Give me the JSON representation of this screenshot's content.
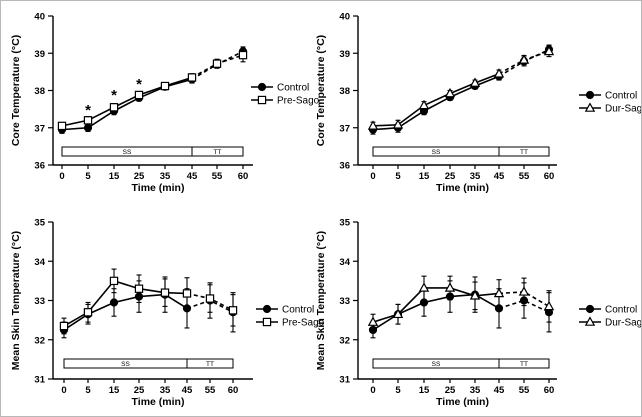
{
  "chart_data": [
    {
      "type": "line",
      "id": "core-pre",
      "ylabel": "Core Temperature (°C)",
      "xlabel": "Time (min)",
      "ylim": [
        36,
        40
      ],
      "yticks": [
        36,
        37,
        38,
        39,
        40
      ],
      "x": [
        0,
        5,
        15,
        25,
        35,
        45,
        55,
        60
      ],
      "xlabels": [
        "0",
        "5",
        "15",
        "25",
        "35",
        "45",
        "55",
        "60"
      ],
      "phases": [
        "SS",
        "TT"
      ],
      "solid_end_index": 5,
      "significance": [
        {
          "label": "*",
          "index": 1,
          "y": 37.5
        },
        {
          "label": "*",
          "index": 2,
          "y": 37.9
        },
        {
          "label": "*",
          "index": 3,
          "y": 38.2
        }
      ],
      "series": [
        {
          "name": "Control",
          "marker": "circle",
          "values": [
            36.95,
            37.0,
            37.45,
            37.8,
            38.1,
            38.3,
            38.7,
            39.05
          ],
          "errors": [
            0.1,
            0.1,
            0.1,
            0.08,
            0.08,
            0.1,
            0.1,
            0.12
          ]
        },
        {
          "name": "Pre-Sago",
          "marker": "square",
          "values": [
            37.05,
            37.2,
            37.55,
            37.88,
            38.12,
            38.35,
            38.72,
            38.95
          ],
          "errors": [
            0.08,
            0.1,
            0.1,
            0.08,
            0.08,
            0.1,
            0.12,
            0.18
          ]
        }
      ]
    },
    {
      "type": "line",
      "id": "core-dur",
      "ylabel": "Core Temperature (°C)",
      "xlabel": "Time (min)",
      "ylim": [
        36,
        40
      ],
      "yticks": [
        36,
        37,
        38,
        39,
        40
      ],
      "x": [
        0,
        5,
        15,
        25,
        35,
        45,
        55,
        60
      ],
      "xlabels": [
        "0",
        "5",
        "15",
        "25",
        "35",
        "45",
        "55",
        "60"
      ],
      "phases": [
        "SS",
        "TT"
      ],
      "solid_end_index": 5,
      "significance": [],
      "series": [
        {
          "name": "Control",
          "marker": "circle",
          "values": [
            36.95,
            37.0,
            37.45,
            37.82,
            38.12,
            38.38,
            38.78,
            39.1
          ],
          "errors": [
            0.12,
            0.12,
            0.1,
            0.08,
            0.08,
            0.1,
            0.12,
            0.12
          ]
        },
        {
          "name": "Dur-Sago",
          "marker": "triangle",
          "values": [
            37.05,
            37.08,
            37.6,
            37.92,
            38.2,
            38.45,
            38.82,
            39.05
          ],
          "errors": [
            0.1,
            0.12,
            0.1,
            0.08,
            0.08,
            0.1,
            0.12,
            0.14
          ]
        }
      ]
    },
    {
      "type": "line",
      "id": "skin-pre",
      "ylabel": "Mean Skin Temperature (°C)",
      "xlabel": "Time (min)",
      "ylim": [
        31,
        35
      ],
      "yticks": [
        31,
        32,
        33,
        34,
        35
      ],
      "x": [
        0,
        5,
        15,
        25,
        35,
        45,
        55,
        60
      ],
      "xlabels": [
        "0",
        "5",
        "15",
        "25",
        "35",
        "45",
        "55",
        "60"
      ],
      "phases": [
        "SS",
        "TT"
      ],
      "solid_end_index": 5,
      "significance": [],
      "series": [
        {
          "name": "Control",
          "marker": "circle",
          "values": [
            32.25,
            32.65,
            32.95,
            33.1,
            33.15,
            32.8,
            33.0,
            32.7
          ],
          "errors": [
            0.2,
            0.25,
            0.35,
            0.4,
            0.45,
            0.5,
            0.45,
            0.5
          ]
        },
        {
          "name": "Pre-Sago",
          "marker": "square",
          "values": [
            32.35,
            32.7,
            33.5,
            33.3,
            33.2,
            33.18,
            33.05,
            32.75
          ],
          "errors": [
            0.2,
            0.25,
            0.3,
            0.35,
            0.35,
            0.4,
            0.35,
            0.4
          ]
        }
      ]
    },
    {
      "type": "line",
      "id": "skin-dur",
      "ylabel": "Mean Skin Temperature (°C)",
      "xlabel": "Time (min)",
      "ylim": [
        31,
        35
      ],
      "yticks": [
        31,
        32,
        33,
        34,
        35
      ],
      "x": [
        0,
        5,
        15,
        25,
        35,
        45,
        55,
        60
      ],
      "xlabels": [
        "0",
        "5",
        "15",
        "25",
        "35",
        "45",
        "55",
        "60"
      ],
      "phases": [
        "SS",
        "TT"
      ],
      "solid_end_index": 5,
      "significance": [],
      "series": [
        {
          "name": "Control",
          "marker": "circle",
          "values": [
            32.25,
            32.65,
            32.95,
            33.1,
            33.15,
            32.8,
            33.0,
            32.7
          ],
          "errors": [
            0.2,
            0.25,
            0.35,
            0.4,
            0.45,
            0.5,
            0.45,
            0.5
          ]
        },
        {
          "name": "Dur-Sago",
          "marker": "triangle",
          "values": [
            32.45,
            32.65,
            33.32,
            33.32,
            33.12,
            33.18,
            33.22,
            32.85
          ],
          "errors": [
            0.2,
            0.25,
            0.3,
            0.3,
            0.35,
            0.35,
            0.35,
            0.4
          ]
        }
      ]
    }
  ]
}
